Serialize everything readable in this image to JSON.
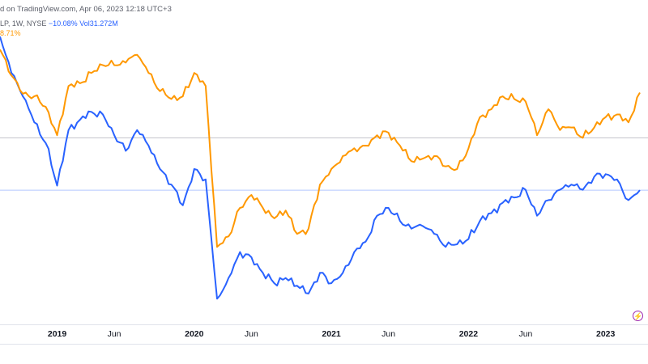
{
  "header": {
    "published": "d on TradingView.com, Apr 06, 2023 12:18 UTC+3",
    "symbol": "LP, 1W, NYSE",
    "change_blue": "−10.08%",
    "volume": "Vol31.272M",
    "change_orange": "8.71%"
  },
  "colors": {
    "blue_series": "#2962ff",
    "orange_series": "#ff9800",
    "baseline_gray": "#b2b5be",
    "baseline_blue": "#2962ff"
  },
  "icons": {
    "bolt": "lightning-bolt-icon"
  },
  "chart_data": {
    "type": "line",
    "title": "",
    "xlabel": "",
    "ylabel": "",
    "x_ticks": [
      {
        "label": "2019",
        "date": "2019-01",
        "year": true
      },
      {
        "label": "Jun",
        "date": "2019-06",
        "year": false
      },
      {
        "label": "2020",
        "date": "2020-01",
        "year": true
      },
      {
        "label": "Jun",
        "date": "2020-06",
        "year": false
      },
      {
        "label": "2021",
        "date": "2021-01",
        "year": true
      },
      {
        "label": "Jun",
        "date": "2021-06",
        "year": false
      },
      {
        "label": "2022",
        "date": "2022-01",
        "year": true
      },
      {
        "label": "Jun",
        "date": "2022-06",
        "year": false
      },
      {
        "label": "2023",
        "date": "2023-01",
        "year": true
      }
    ],
    "xlim": [
      "2018-08",
      "2023-04"
    ],
    "ylim": [
      -35,
      25
    ],
    "baselines": [
      {
        "name": "orange-baseline",
        "value": 0
      },
      {
        "name": "blue-baseline",
        "value": -10.08
      }
    ],
    "series": [
      {
        "color": "#2962ff",
        "points": [
          [
            "2018-08",
            19.5
          ],
          [
            "2018-09",
            12.5
          ],
          [
            "2018-10",
            8.0
          ],
          [
            "2018-11",
            3.0
          ],
          [
            "2018-12",
            -1.0
          ],
          [
            "2019-01",
            -9.2
          ],
          [
            "2019-02",
            1.5
          ],
          [
            "2019-03",
            3.5
          ],
          [
            "2019-04",
            5.0
          ],
          [
            "2019-05",
            4.5
          ],
          [
            "2019-06",
            0.5
          ],
          [
            "2019-07",
            -2.5
          ],
          [
            "2019-08",
            1.5
          ],
          [
            "2019-09",
            -1.5
          ],
          [
            "2019-10",
            -6.0
          ],
          [
            "2019-11",
            -9.0
          ],
          [
            "2019-12",
            -13.0
          ],
          [
            "2020-01",
            -6.0
          ],
          [
            "2020-02",
            -8.0
          ],
          [
            "2020-03",
            -31.0
          ],
          [
            "2020-04",
            -27.0
          ],
          [
            "2020-05",
            -22.0
          ],
          [
            "2020-06",
            -23.0
          ],
          [
            "2020-07",
            -26.0
          ],
          [
            "2020-08",
            -28.0
          ],
          [
            "2020-09",
            -27.0
          ],
          [
            "2020-10",
            -28.5
          ],
          [
            "2020-11",
            -30.0
          ],
          [
            "2020-12",
            -26.0
          ],
          [
            "2021-01",
            -28.0
          ],
          [
            "2021-02",
            -26.0
          ],
          [
            "2021-03",
            -22.0
          ],
          [
            "2021-04",
            -20.0
          ],
          [
            "2021-05",
            -15.0
          ],
          [
            "2021-06",
            -13.5
          ],
          [
            "2021-07",
            -16.0
          ],
          [
            "2021-08",
            -17.5
          ],
          [
            "2021-09",
            -17.0
          ],
          [
            "2021-10",
            -18.5
          ],
          [
            "2021-11",
            -21.0
          ],
          [
            "2021-12",
            -20.5
          ],
          [
            "2022-01",
            -19.5
          ],
          [
            "2022-02",
            -16.0
          ],
          [
            "2022-03",
            -14.5
          ],
          [
            "2022-04",
            -12.5
          ],
          [
            "2022-05",
            -11.5
          ],
          [
            "2022-06",
            -10.0
          ],
          [
            "2022-07",
            -15.0
          ],
          [
            "2022-08",
            -12.0
          ],
          [
            "2022-09",
            -10.0
          ],
          [
            "2022-10",
            -9.0
          ],
          [
            "2022-11",
            -10.0
          ],
          [
            "2022-12",
            -7.5
          ],
          [
            "2023-01",
            -7.0
          ],
          [
            "2023-02",
            -8.0
          ],
          [
            "2023-03",
            -12.0
          ],
          [
            "2023-04",
            -10.08
          ]
        ]
      },
      {
        "color": "#ff9800",
        "points": [
          [
            "2018-08",
            17.0
          ],
          [
            "2018-09",
            12.0
          ],
          [
            "2018-10",
            8.5
          ],
          [
            "2018-11",
            8.0
          ],
          [
            "2018-12",
            6.0
          ],
          [
            "2019-01",
            0.5
          ],
          [
            "2019-02",
            10.0
          ],
          [
            "2019-03",
            10.5
          ],
          [
            "2019-04",
            12.5
          ],
          [
            "2019-05",
            14.0
          ],
          [
            "2019-06",
            14.0
          ],
          [
            "2019-07",
            14.5
          ],
          [
            "2019-08",
            16.0
          ],
          [
            "2019-09",
            12.5
          ],
          [
            "2019-10",
            9.0
          ],
          [
            "2019-11",
            7.5
          ],
          [
            "2019-12",
            8.0
          ],
          [
            "2020-01",
            12.5
          ],
          [
            "2020-02",
            10.0
          ],
          [
            "2020-03",
            -21.0
          ],
          [
            "2020-04",
            -19.0
          ],
          [
            "2020-05",
            -13.5
          ],
          [
            "2020-06",
            -11.0
          ],
          [
            "2020-07",
            -13.5
          ],
          [
            "2020-08",
            -15.5
          ],
          [
            "2020-09",
            -14.0
          ],
          [
            "2020-10",
            -18.5
          ],
          [
            "2020-11",
            -17.5
          ],
          [
            "2020-12",
            -9.0
          ],
          [
            "2021-01",
            -6.0
          ],
          [
            "2021-02",
            -3.5
          ],
          [
            "2021-03",
            -2.0
          ],
          [
            "2021-04",
            -1.5
          ],
          [
            "2021-05",
            0.5
          ],
          [
            "2021-06",
            1.0
          ],
          [
            "2021-07",
            -1.5
          ],
          [
            "2021-08",
            -4.5
          ],
          [
            "2021-09",
            -4.0
          ],
          [
            "2021-10",
            -3.5
          ],
          [
            "2021-11",
            -5.5
          ],
          [
            "2021-12",
            -6.0
          ],
          [
            "2022-01",
            -2.0
          ],
          [
            "2022-02",
            4.0
          ],
          [
            "2022-03",
            5.5
          ],
          [
            "2022-04",
            8.0
          ],
          [
            "2022-05",
            7.5
          ],
          [
            "2022-06",
            7.0
          ],
          [
            "2022-07",
            0.5
          ],
          [
            "2022-08",
            5.5
          ],
          [
            "2022-09",
            1.5
          ],
          [
            "2022-10",
            2.0
          ],
          [
            "2022-11",
            0.0
          ],
          [
            "2022-12",
            2.0
          ],
          [
            "2023-01",
            4.0
          ],
          [
            "2023-02",
            4.5
          ],
          [
            "2023-03",
            3.0
          ],
          [
            "2023-04",
            8.71
          ]
        ]
      }
    ]
  }
}
